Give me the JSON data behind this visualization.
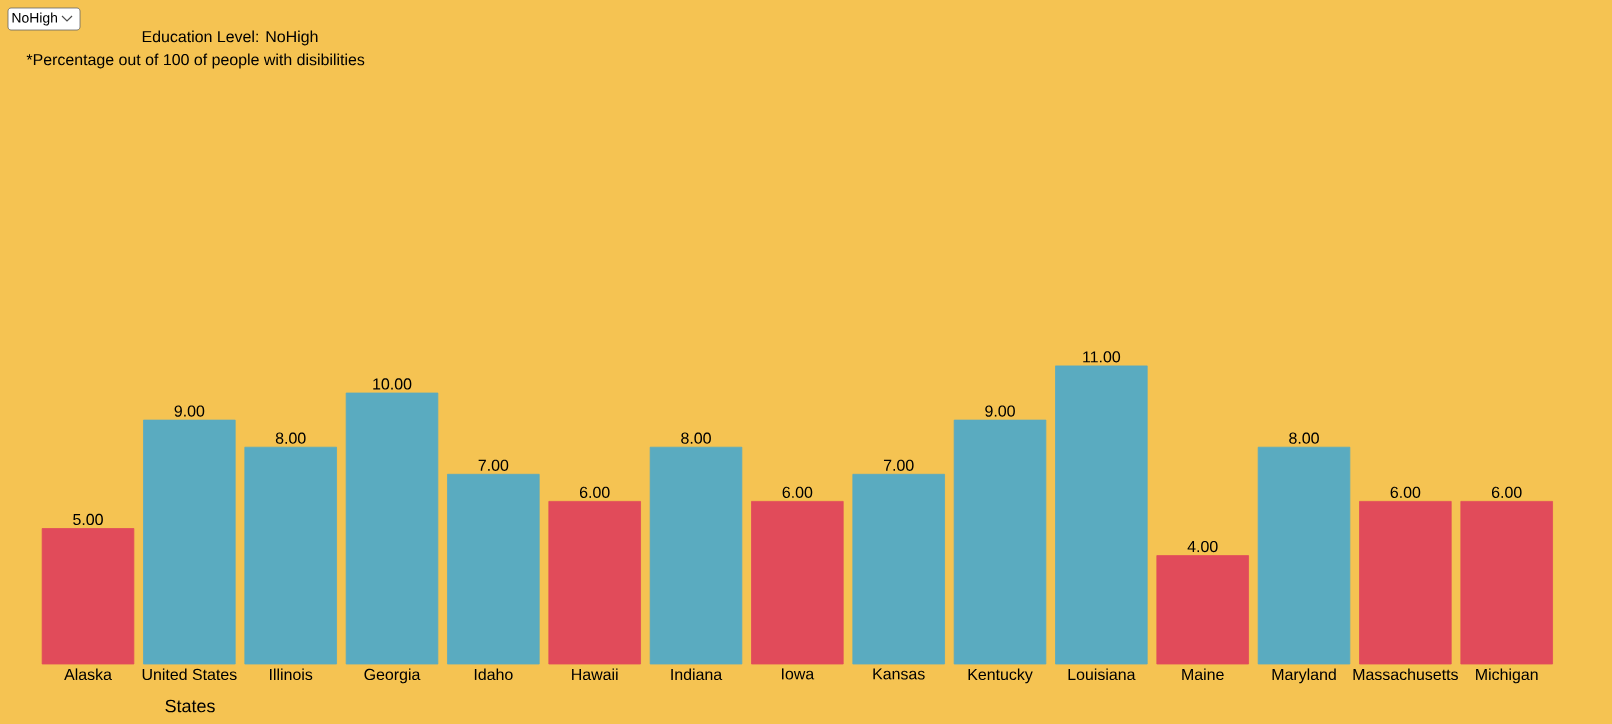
{
  "chart_data": {
    "type": "bar",
    "title": "Education Level: NoHigh",
    "subtitle": "*Percentage out of 100 of people with disibilities",
    "xlabel": "States",
    "annotations": [
      "NoHigh"
    ],
    "categories": [
      "Alaska",
      "United States",
      "Illinois",
      "Georgia",
      "Idaho",
      "Hawaii",
      "Indiana",
      "Iowa",
      "Kansas",
      "Kentucky",
      "Louisiana",
      "Maine",
      "Maryland",
      "Massachusetts",
      "Michigan"
    ],
    "values": [
      5,
      9,
      8,
      10,
      7,
      6,
      8,
      6,
      7,
      9,
      11,
      4,
      8,
      6,
      6
    ],
    "value_labels": [
      "5.00",
      "9.00",
      "8.00",
      "10.00",
      "7.00",
      "6.00",
      "8.00",
      "6.00",
      "7.00",
      "9.00",
      "11.00",
      "4.00",
      "8.00",
      "6.00",
      "6.00"
    ],
    "colors": [
      "#e14b5a",
      "#5aabc0",
      "#5aabc0",
      "#5aabc0",
      "#5aabc0",
      "#e14b5a",
      "#5aabc0",
      "#e14b5a",
      "#5aabc0",
      "#5aabc0",
      "#5aabc0",
      "#e14b5a",
      "#5aabc0",
      "#e14b5a",
      "#e14b5a"
    ]
  }
}
